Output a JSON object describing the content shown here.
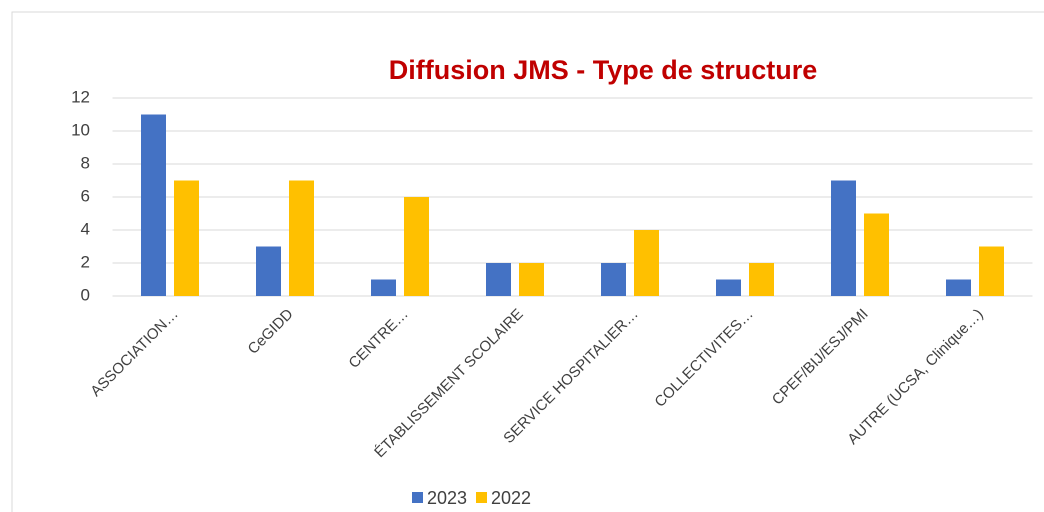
{
  "chart_data": {
    "type": "bar",
    "title": "Diffusion JMS  - Type de structure",
    "categories": [
      "ASSOCIATION…",
      "CeGIDD",
      "CENTRE…",
      "ÉTABLISSEMENT SCOLAIRE",
      "SERVICE HOSPITALIER…",
      "COLLECTIVITES…",
      "CPEF/BIJ/ESJ/PMI",
      "AUTRE (UCSA, Clinique…)"
    ],
    "series": [
      {
        "name": "2023",
        "color": "#4472c4",
        "values": [
          11,
          3,
          1,
          2,
          2,
          1,
          7,
          1
        ]
      },
      {
        "name": "2022",
        "color": "#ffc000",
        "values": [
          7,
          7,
          6,
          2,
          4,
          2,
          5,
          3
        ]
      }
    ],
    "ylim": [
      0,
      12
    ],
    "yticks": [
      0,
      2,
      4,
      6,
      8,
      10,
      12
    ],
    "grid": true,
    "legend": "bottom"
  }
}
